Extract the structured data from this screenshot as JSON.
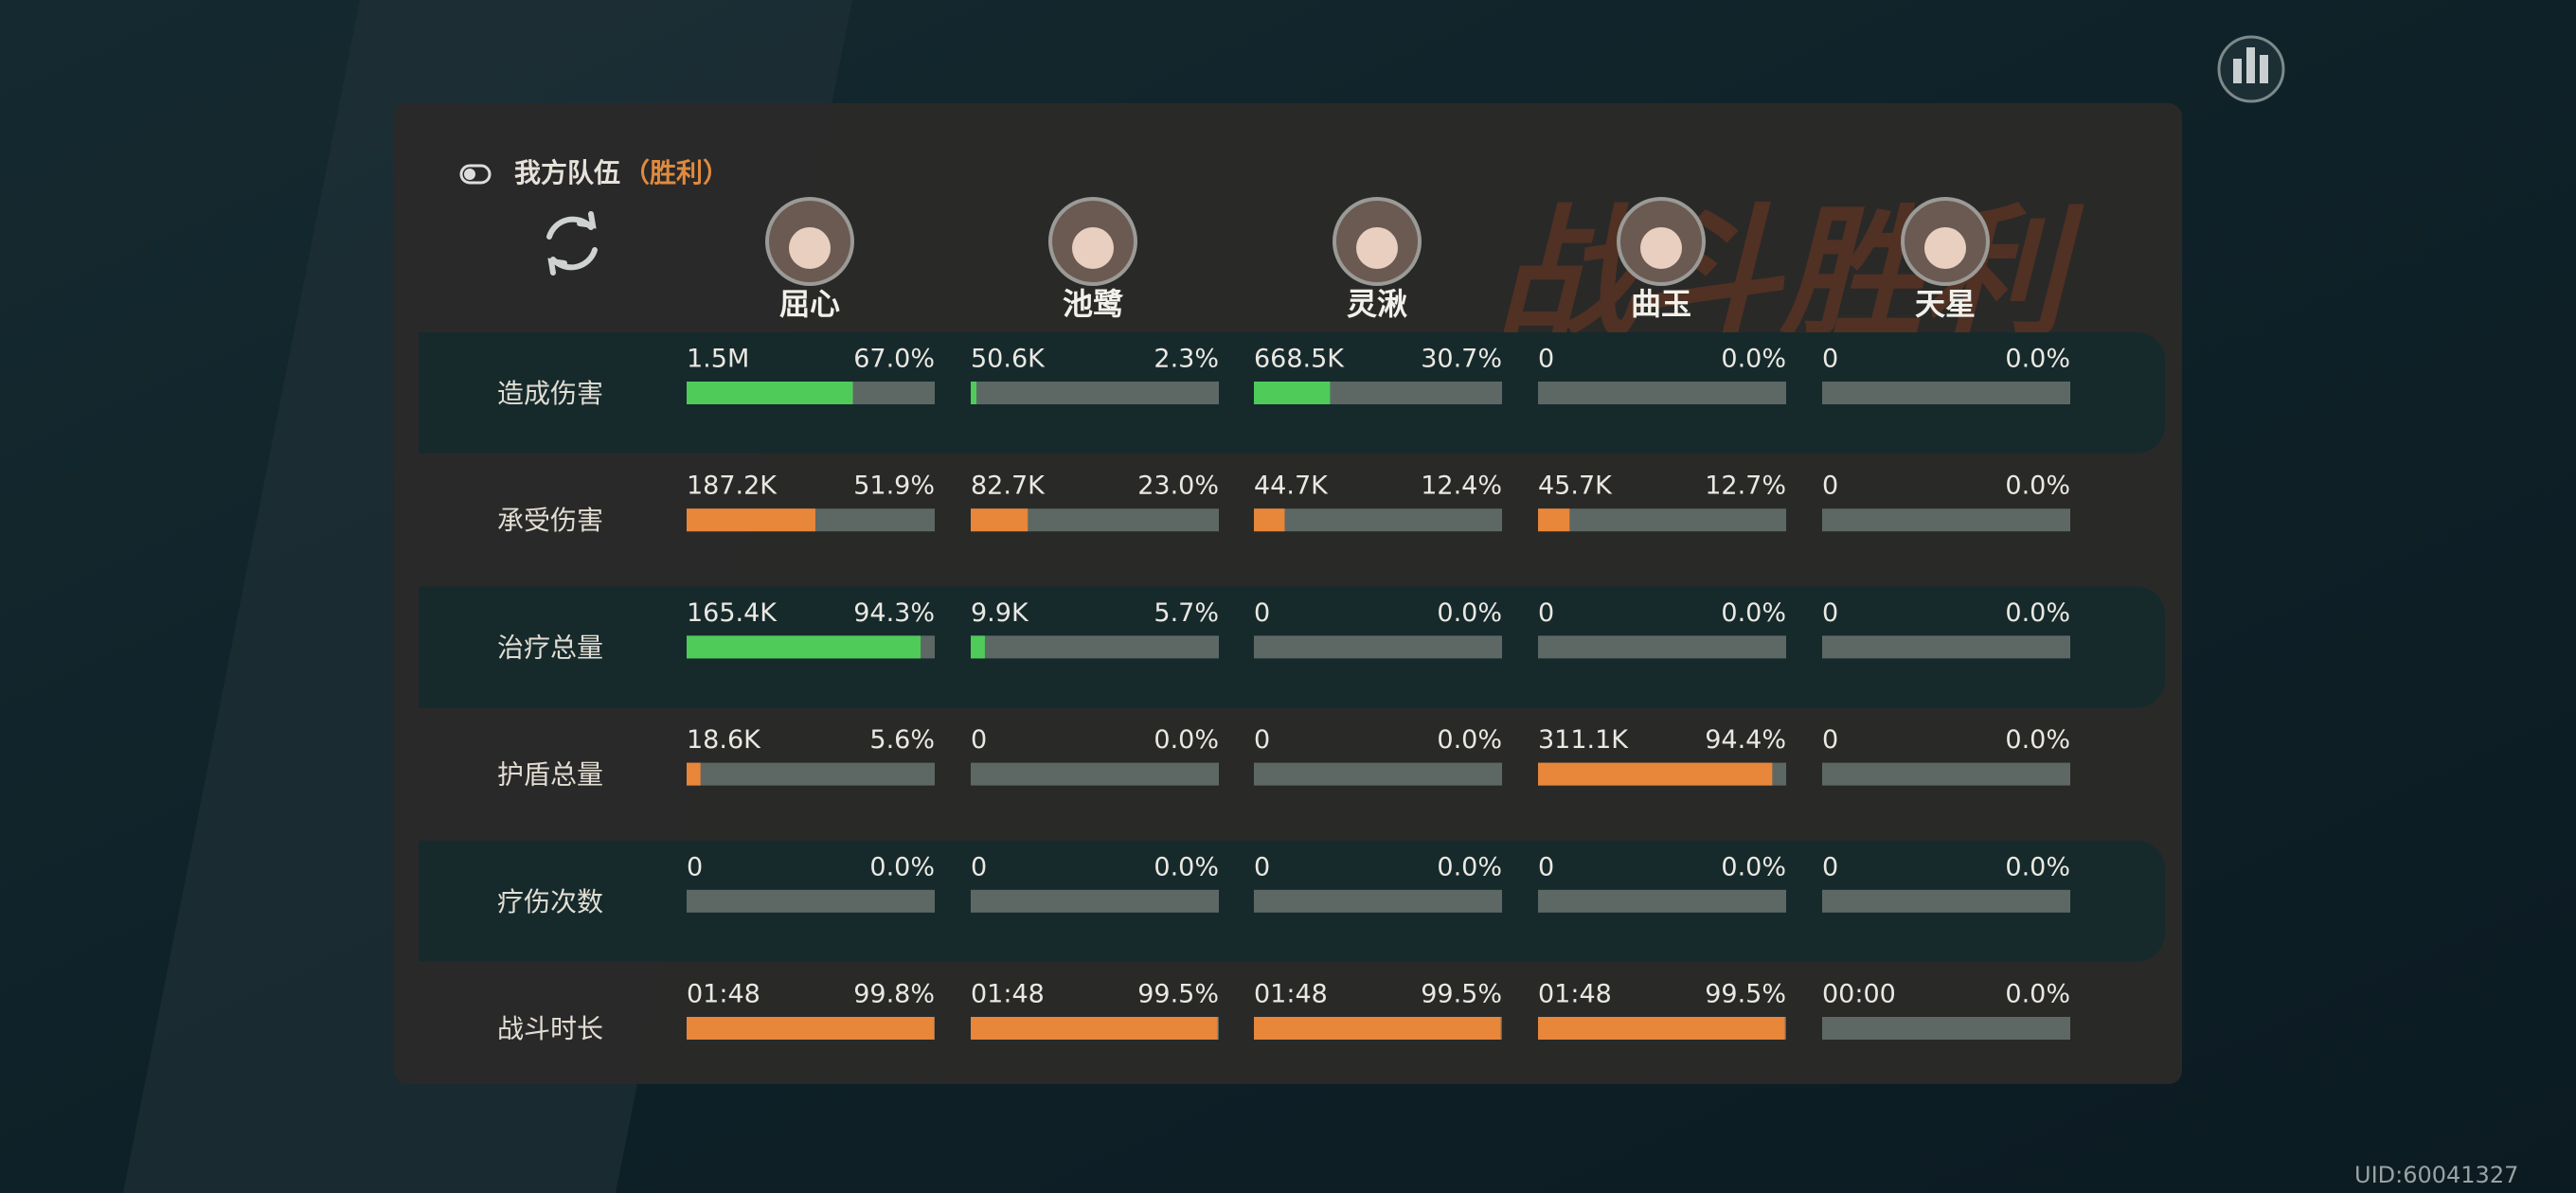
{
  "header": {
    "title": "我方队伍",
    "result": "（胜利）"
  },
  "background_title": "战斗胜利",
  "characters": [
    "屈心",
    "池鹭",
    "灵湫",
    "曲玉",
    "天星"
  ],
  "rows": [
    {
      "label": "造成伤害",
      "color": "#4fcb5a",
      "cells": [
        {
          "amount": "1.5M",
          "percent": 67.0,
          "percent_label": "67.0%"
        },
        {
          "amount": "50.6K",
          "percent": 2.3,
          "percent_label": "2.3%"
        },
        {
          "amount": "668.5K",
          "percent": 30.7,
          "percent_label": "30.7%"
        },
        {
          "amount": "0",
          "percent": 0,
          "percent_label": "0.0%"
        },
        {
          "amount": "0",
          "percent": 0,
          "percent_label": "0.0%"
        }
      ]
    },
    {
      "label": "承受伤害",
      "color": "#e8863a",
      "cells": [
        {
          "amount": "187.2K",
          "percent": 51.9,
          "percent_label": "51.9%"
        },
        {
          "amount": "82.7K",
          "percent": 23.0,
          "percent_label": "23.0%"
        },
        {
          "amount": "44.7K",
          "percent": 12.4,
          "percent_label": "12.4%"
        },
        {
          "amount": "45.7K",
          "percent": 12.7,
          "percent_label": "12.7%"
        },
        {
          "amount": "0",
          "percent": 0,
          "percent_label": "0.0%"
        }
      ]
    },
    {
      "label": "治疗总量",
      "color": "#4fcb5a",
      "cells": [
        {
          "amount": "165.4K",
          "percent": 94.3,
          "percent_label": "94.3%"
        },
        {
          "amount": "9.9K",
          "percent": 5.7,
          "percent_label": "5.7%"
        },
        {
          "amount": "0",
          "percent": 0,
          "percent_label": "0.0%"
        },
        {
          "amount": "0",
          "percent": 0,
          "percent_label": "0.0%"
        },
        {
          "amount": "0",
          "percent": 0,
          "percent_label": "0.0%"
        }
      ]
    },
    {
      "label": "护盾总量",
      "color": "#e8863a",
      "cells": [
        {
          "amount": "18.6K",
          "percent": 5.6,
          "percent_label": "5.6%"
        },
        {
          "amount": "0",
          "percent": 0,
          "percent_label": "0.0%"
        },
        {
          "amount": "0",
          "percent": 0,
          "percent_label": "0.0%"
        },
        {
          "amount": "311.1K",
          "percent": 94.4,
          "percent_label": "94.4%"
        },
        {
          "amount": "0",
          "percent": 0,
          "percent_label": "0.0%"
        }
      ]
    },
    {
      "label": "疗伤次数",
      "color": "#e8863a",
      "cells": [
        {
          "amount": "0",
          "percent": 0,
          "percent_label": "0.0%"
        },
        {
          "amount": "0",
          "percent": 0,
          "percent_label": "0.0%"
        },
        {
          "amount": "0",
          "percent": 0,
          "percent_label": "0.0%"
        },
        {
          "amount": "0",
          "percent": 0,
          "percent_label": "0.0%"
        },
        {
          "amount": "0",
          "percent": 0,
          "percent_label": "0.0%"
        }
      ]
    },
    {
      "label": "战斗时长",
      "color": "#e8863a",
      "cells": [
        {
          "amount": "01:48",
          "percent": 99.8,
          "percent_label": "99.8%"
        },
        {
          "amount": "01:48",
          "percent": 99.5,
          "percent_label": "99.5%"
        },
        {
          "amount": "01:48",
          "percent": 99.5,
          "percent_label": "99.5%"
        },
        {
          "amount": "01:48",
          "percent": 99.5,
          "percent_label": "99.5%"
        },
        {
          "amount": "00:00",
          "percent": 0,
          "percent_label": "0.0%"
        }
      ]
    }
  ],
  "uid": "UID:60041327"
}
